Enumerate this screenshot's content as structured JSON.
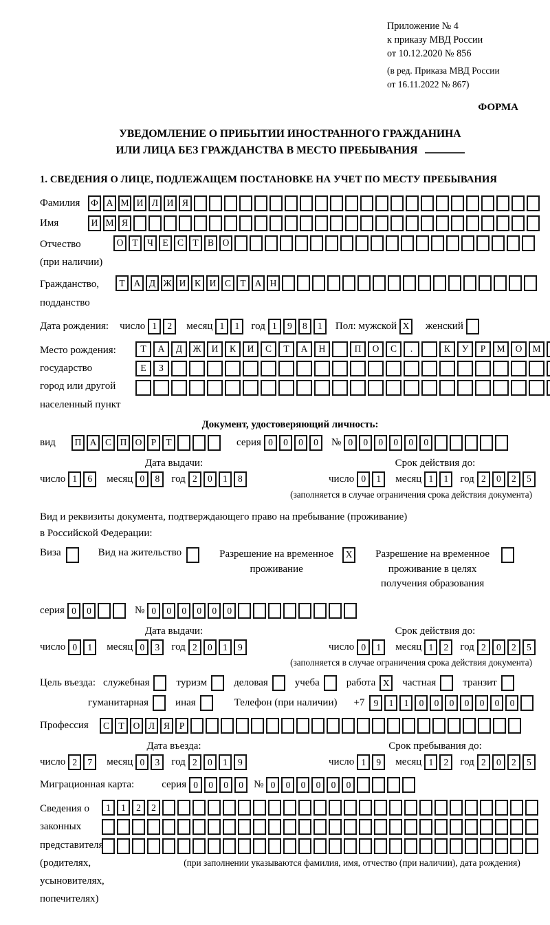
{
  "colors": {
    "ink": "#000000",
    "paper": "#ffffff"
  },
  "date_labels": {
    "day": "число",
    "month": "месяц",
    "year": "год"
  },
  "meta": {
    "appendix_lines": [
      "Приложение № 4",
      "к приказу МВД России",
      "от 10.12.2020 № 856"
    ],
    "revision_lines": [
      "(в ред. Приказа МВД России",
      "от 16.11.2022 № 867)"
    ],
    "form_label": "ФОРМА"
  },
  "title": {
    "line1": "УВЕДОМЛЕНИЕ О ПРИБЫТИИ ИНОСТРАННОГО ГРАЖДАНИНА",
    "line2": "ИЛИ ЛИЦА БЕЗ ГРАЖДАНСТВА В МЕСТО ПРЕБЫВАНИЯ"
  },
  "section1": {
    "heading": "1. СВЕДЕНИЯ О ЛИЦЕ, ПОДЛЕЖАЩЕМ ПОСТАНОВКЕ НА УЧЕТ ПО МЕСТУ ПРЕБЫВАНИЯ"
  },
  "person": {
    "surname": {
      "label": "Фамилия",
      "value": "ФАМИЛИЯ",
      "cells": 30
    },
    "given_name": {
      "label": "Имя",
      "value": "ИМЯ",
      "cells": 30
    },
    "patronymic": {
      "label_lines": [
        "Отчество",
        "(при наличии)"
      ],
      "value": "ОТЧЕСТВО",
      "cells": 28
    },
    "citizenship": {
      "label_lines": [
        "Гражданство,",
        "подданство"
      ],
      "value": "ТАДЖИКИСТАН",
      "cells": 28
    },
    "birth_date": {
      "label": "Дата рождения:",
      "day": {
        "value": "12",
        "cells": 2
      },
      "month": {
        "value": "11",
        "cells": 2
      },
      "year": {
        "value": "1981",
        "cells": 4
      }
    },
    "sex": {
      "male_label": "Пол: мужской",
      "male_mark": {
        "value": "X",
        "cells": 1
      },
      "female_label": "женский",
      "female_mark": {
        "value": "",
        "cells": 1
      }
    },
    "birth_place": {
      "label_lines": [
        "Место рождения:",
        "государство",
        "город или другой",
        "населенный пункт"
      ],
      "rows": [
        {
          "value": "ТАДЖИКИСТАН ПОС. КУРМОМБ",
          "cells": 24
        },
        {
          "value": "ЕЗ",
          "cells": 24
        },
        {
          "value": "",
          "cells": 24
        }
      ]
    }
  },
  "identity_doc": {
    "heading": "Документ, удостоверяющий личность:",
    "kind_label": "вид",
    "kind": {
      "value": "ПАСПОРТ",
      "cells": 10
    },
    "series_label": "серия",
    "series": {
      "value": "0000",
      "cells": 4
    },
    "number_label": "№",
    "number": {
      "value": "000000",
      "cells": 11
    },
    "issue_heading": "Дата выдачи:",
    "issue": {
      "day": {
        "value": "16",
        "cells": 2
      },
      "month": {
        "value": "08",
        "cells": 2
      },
      "year": {
        "value": "2018",
        "cells": 4
      }
    },
    "expiry_heading": "Срок действия до:",
    "expiry": {
      "day": {
        "value": "01",
        "cells": 2
      },
      "month": {
        "value": "11",
        "cells": 2
      },
      "year": {
        "value": "2025",
        "cells": 4
      }
    },
    "note": "(заполняется в случае ограничения срока действия документа)"
  },
  "residence_doc": {
    "intro_lines": [
      "Вид и реквизиты документа, подтверждающего право на пребывание (проживание)",
      "в Российской Федерации:"
    ],
    "options": [
      {
        "label": "Виза",
        "mark": {
          "value": "",
          "cells": 1
        }
      },
      {
        "label": "Вид на жительство",
        "mark": {
          "value": "",
          "cells": 1
        }
      },
      {
        "label": "Разрешение на временное проживание",
        "mark": {
          "value": "X",
          "cells": 1
        }
      },
      {
        "label": "Разрешение на временное проживание в целях получения образования",
        "mark": {
          "value": "",
          "cells": 1
        }
      }
    ],
    "series_label": "серия",
    "series": {
      "value": "00",
      "cells": 4
    },
    "number_label": "№",
    "number": {
      "value": "000000",
      "cells": 14
    },
    "issue_heading": "Дата выдачи:",
    "issue": {
      "day": {
        "value": "01",
        "cells": 2
      },
      "month": {
        "value": "03",
        "cells": 2
      },
      "year": {
        "value": "2019",
        "cells": 4
      }
    },
    "expiry_heading": "Срок действия до:",
    "expiry": {
      "day": {
        "value": "01",
        "cells": 2
      },
      "month": {
        "value": "12",
        "cells": 2
      },
      "year": {
        "value": "2025",
        "cells": 4
      }
    },
    "note": "(заполняется в случае ограничения срока действия документа)"
  },
  "visit": {
    "purpose_label": "Цель въезда:",
    "purposes": [
      {
        "label": "служебная",
        "mark": {
          "value": "",
          "cells": 1
        }
      },
      {
        "label": "туризм",
        "mark": {
          "value": "",
          "cells": 1
        }
      },
      {
        "label": "деловая",
        "mark": {
          "value": "",
          "cells": 1
        }
      },
      {
        "label": "учеба",
        "mark": {
          "value": "",
          "cells": 1
        }
      },
      {
        "label": "работа",
        "mark": {
          "value": "X",
          "cells": 1
        }
      },
      {
        "label": "частная",
        "mark": {
          "value": "",
          "cells": 1
        }
      },
      {
        "label": "транзит",
        "mark": {
          "value": "",
          "cells": 1
        }
      },
      {
        "label": "гуманитарная",
        "mark": {
          "value": "",
          "cells": 1
        }
      },
      {
        "label": "иная",
        "mark": {
          "value": "",
          "cells": 1
        }
      }
    ],
    "phone_label": "Телефон (при наличии)",
    "phone_prefix": "+7",
    "phone": {
      "value": "9110000000",
      "cells": 11
    },
    "profession_label": "Профессия",
    "profession": {
      "value": "СТОЛЯР",
      "cells": 28
    },
    "entry_heading": "Дата въезда:",
    "entry": {
      "day": {
        "value": "27",
        "cells": 2
      },
      "month": {
        "value": "03",
        "cells": 2
      },
      "year": {
        "value": "2019",
        "cells": 4
      }
    },
    "stay_heading": "Срок пребывания до:",
    "stay_until": {
      "day": {
        "value": "19",
        "cells": 2
      },
      "month": {
        "value": "12",
        "cells": 2
      },
      "year": {
        "value": "2025",
        "cells": 4
      }
    }
  },
  "migration_card": {
    "label": "Миграционная карта:",
    "series_label": "серия",
    "series": {
      "value": "0000",
      "cells": 4
    },
    "number_label": "№",
    "number": {
      "value": "000000",
      "cells": 10
    }
  },
  "representatives": {
    "label_lines": [
      "Сведения о",
      "законных",
      "представителях",
      "(родителях,",
      "усыновителях,",
      "попечителях)"
    ],
    "rows": [
      {
        "value": "1122",
        "cells": 29
      },
      {
        "value": "",
        "cells": 29
      },
      {
        "value": "",
        "cells": 29
      }
    ],
    "note": "(при заполнении указываются фамилия, имя, отчество (при наличии), дата рождения)"
  }
}
